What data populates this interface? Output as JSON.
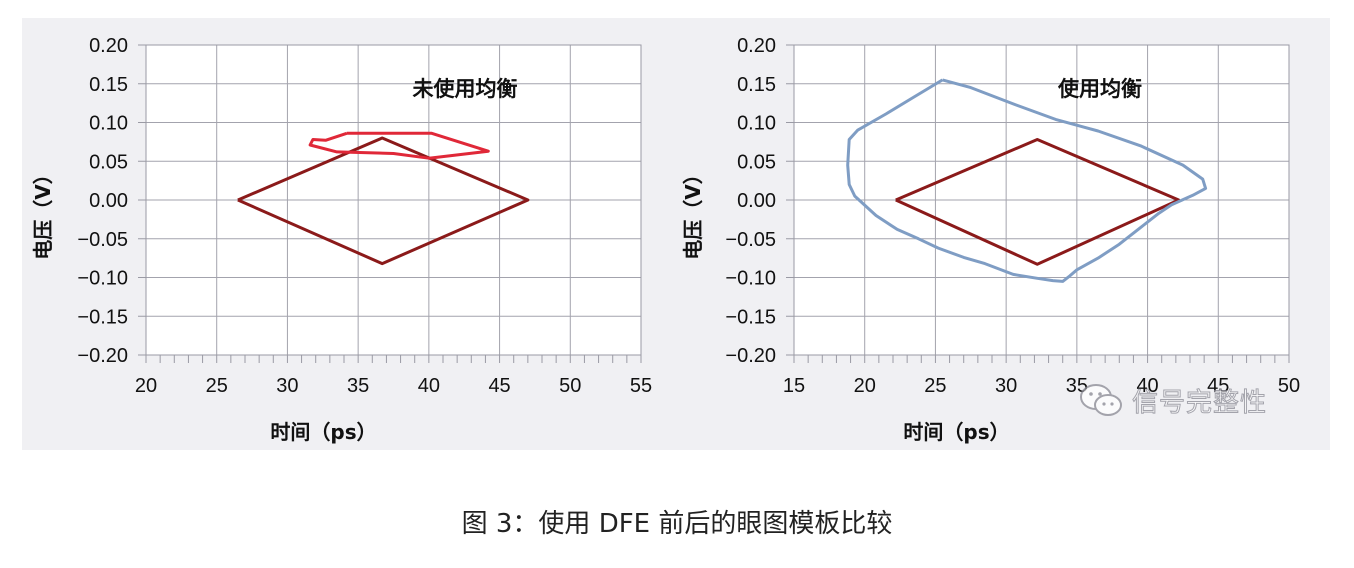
{
  "chart_data": [
    {
      "type": "line",
      "title": "未使用均衡",
      "xlabel": "时间（ps）",
      "ylabel": "电压（V）",
      "xlim": [
        20,
        55
      ],
      "ylim": [
        -0.2,
        0.2
      ],
      "xticks": [
        "20",
        "25",
        "30",
        "35",
        "40",
        "45",
        "50",
        "55"
      ],
      "yticks": [
        "0.20",
        "0.15",
        "0.10",
        "0.05",
        "0.00",
        "−0.05",
        "−0.10",
        "−0.15",
        "−0.20"
      ],
      "grid": true,
      "series": [
        {
          "role": "eye-mask",
          "color": "#8b1a1a",
          "points": [
            [
              26.5,
              0.0
            ],
            [
              36.7,
              0.08
            ],
            [
              47.0,
              0.0
            ],
            [
              36.7,
              -0.082
            ],
            [
              26.5,
              0.0
            ]
          ]
        },
        {
          "role": "eye-contour",
          "color": "#e02838",
          "points": [
            [
              34.2,
              0.086
            ],
            [
              40.2,
              0.086
            ],
            [
              44.2,
              0.063
            ],
            [
              40.0,
              0.054
            ],
            [
              37.5,
              0.06
            ],
            [
              33.5,
              0.062
            ],
            [
              31.6,
              0.071
            ],
            [
              31.8,
              0.078
            ],
            [
              32.7,
              0.077
            ],
            [
              34.2,
              0.086
            ]
          ]
        }
      ]
    },
    {
      "type": "line",
      "title": "使用均衡",
      "xlabel": "时间（ps）",
      "ylabel": "电压（V）",
      "xlim": [
        15,
        50
      ],
      "ylim": [
        -0.2,
        0.2
      ],
      "xticks": [
        "15",
        "20",
        "25",
        "30",
        "35",
        "40",
        "45",
        "50"
      ],
      "yticks": [
        "0.20",
        "0.15",
        "0.10",
        "0.05",
        "0.00",
        "−0.05",
        "−0.10",
        "−0.15",
        "−0.20"
      ],
      "grid": true,
      "series": [
        {
          "role": "eye-mask",
          "color": "#8b1a1a",
          "points": [
            [
              22.2,
              0.0
            ],
            [
              32.2,
              0.078
            ],
            [
              42.2,
              0.0
            ],
            [
              32.2,
              -0.083
            ],
            [
              22.2,
              0.0
            ]
          ]
        },
        {
          "role": "eye-contour",
          "color": "#7f9dc4",
          "points": [
            [
              25.5,
              0.155
            ],
            [
              27.5,
              0.145
            ],
            [
              30.5,
              0.124
            ],
            [
              33.5,
              0.104
            ],
            [
              36.5,
              0.089
            ],
            [
              39.5,
              0.07
            ],
            [
              42.5,
              0.045
            ],
            [
              43.9,
              0.027
            ],
            [
              44.1,
              0.015
            ],
            [
              43.2,
              0.006
            ],
            [
              41.7,
              -0.006
            ],
            [
              40.8,
              -0.017
            ],
            [
              39.4,
              -0.037
            ],
            [
              38.0,
              -0.057
            ],
            [
              36.5,
              -0.075
            ],
            [
              35.0,
              -0.09
            ],
            [
              34.5,
              -0.098
            ],
            [
              34.0,
              -0.105
            ],
            [
              33.3,
              -0.104
            ],
            [
              32.2,
              -0.101
            ],
            [
              30.5,
              -0.096
            ],
            [
              28.5,
              -0.082
            ],
            [
              27.0,
              -0.074
            ],
            [
              25.2,
              -0.062
            ],
            [
              23.8,
              -0.05
            ],
            [
              22.3,
              -0.038
            ],
            [
              20.8,
              -0.02
            ],
            [
              19.3,
              0.005
            ],
            [
              18.9,
              0.02
            ],
            [
              18.8,
              0.045
            ],
            [
              18.9,
              0.078
            ],
            [
              19.5,
              0.09
            ],
            [
              21.5,
              0.111
            ],
            [
              23.5,
              0.133
            ],
            [
              25.5,
              0.155
            ]
          ]
        }
      ]
    }
  ],
  "caption": "图 3：使用 DFE 前后的眼图模板比较",
  "watermark": {
    "icon": "wechat-icon",
    "text": "信号完整性"
  }
}
